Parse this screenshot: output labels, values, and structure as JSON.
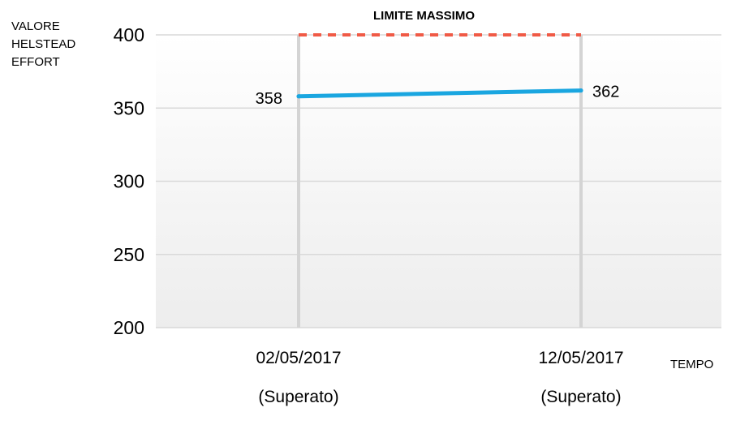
{
  "chart_data": {
    "type": "line",
    "title": "",
    "ylabel_lines": [
      "VALORE",
      "HELSTEAD",
      "EFFORT"
    ],
    "xlabel": "TEMPO",
    "ylim": [
      200,
      400
    ],
    "yticks": [
      200,
      250,
      300,
      350,
      400
    ],
    "categories": [
      "02/05/2017",
      "12/05/2017"
    ],
    "category_sublabels": [
      "(Superato)",
      "(Superato)"
    ],
    "grid": "horizontal and vertical",
    "series": [
      {
        "values": [
          358,
          362
        ],
        "color": "#1aa6e0",
        "data_labels": [
          "358",
          "362"
        ]
      }
    ],
    "threshold": {
      "label": "LIMITE MASSIMO",
      "value": 400,
      "color": "#f05a46",
      "style": "dashed"
    }
  }
}
